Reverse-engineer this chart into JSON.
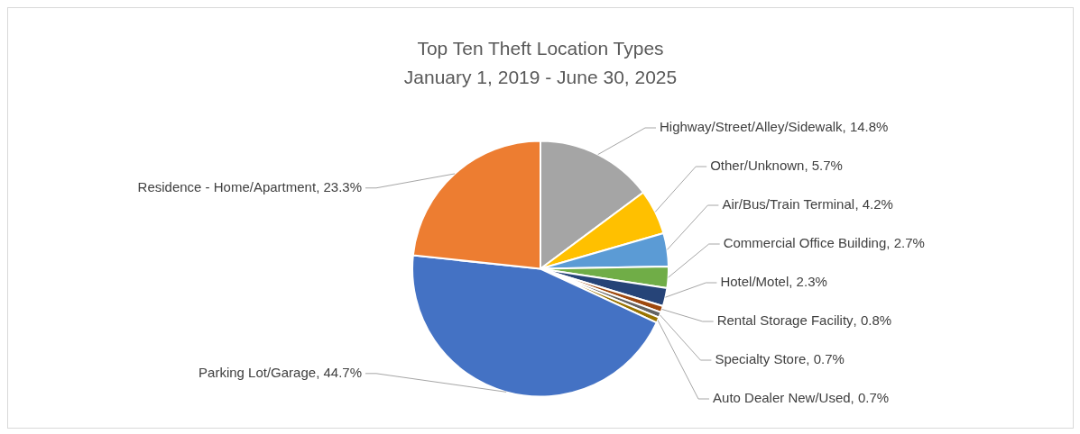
{
  "chart_data": {
    "type": "pie",
    "title": "Top Ten Theft Location Types",
    "subtitle": "January 1, 2019 - June 30, 2025",
    "categories": [
      "Highway/Street/Alley/Sidewalk",
      "Other/Unknown",
      "Air/Bus/Train Terminal",
      "Commercial Office Building",
      "Hotel/Motel",
      "Rental Storage Facility",
      "Specialty Store",
      "Auto Dealer New/Used",
      "Parking Lot/Garage",
      "Residence - Home/Apartment"
    ],
    "values": [
      14.8,
      5.7,
      4.2,
      2.7,
      2.3,
      0.8,
      0.7,
      0.7,
      44.7,
      23.3
    ],
    "colors": [
      "#a5a5a5",
      "#ffc000",
      "#5b9bd5",
      "#70ad47",
      "#264478",
      "#9e480e",
      "#636363",
      "#997300",
      "#4472c4",
      "#ed7d31"
    ],
    "value_labels": [
      ", 14.8%",
      ", 5.7%",
      ", 4.2%",
      ", 2.7%",
      ", 2.3%",
      ", 0.8%",
      ", 0.7%",
      ", 0.7%",
      ", 44.7%",
      ", 23.3%"
    ],
    "legend": false
  }
}
